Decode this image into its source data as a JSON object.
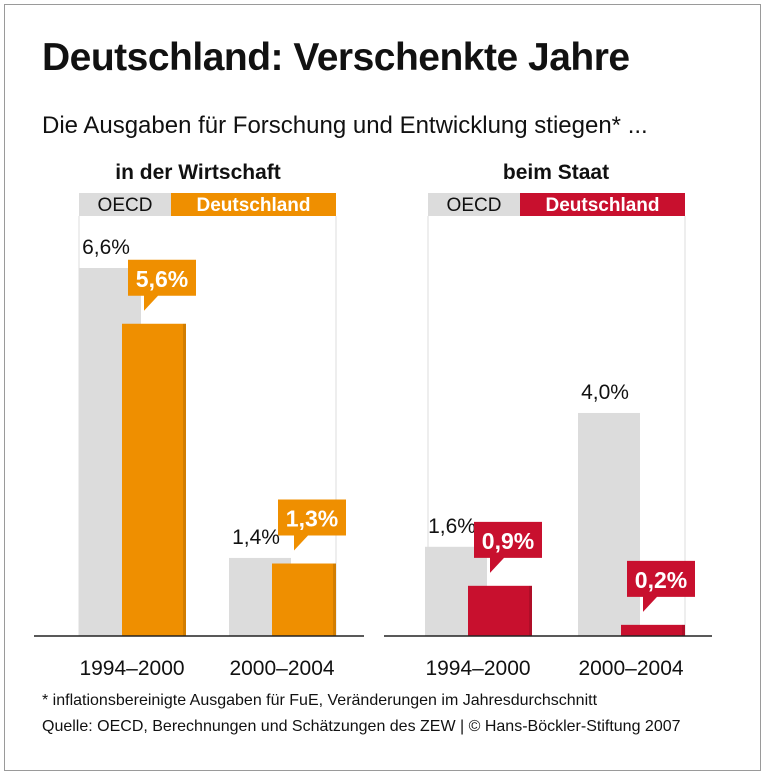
{
  "title": "Deutschland: Verschenkte Jahre",
  "subtitle": "Die Ausgaben für Forschung und Entwicklung stiegen* ...",
  "footnote": "* inflationsbereinigte Ausgaben für FuE, Veränderungen im Jahresdurchschnitt",
  "source": "Quelle: OECD, Berechnungen und Schätzungen des ZEW | © Hans-Böckler-Stiftung 2007",
  "colors": {
    "oecd": "#dcdcdc",
    "wirtschaft_de": "#ef8f00",
    "staat_de": "#c8102e",
    "axis": "#222222"
  },
  "chart_data": [
    {
      "type": "bar",
      "title": "in der Wirtschaft",
      "categories": [
        "1994–2000",
        "2000–2004"
      ],
      "series": [
        {
          "name": "OECD",
          "values": [
            6.6,
            1.4
          ],
          "labels": [
            "6,6%",
            "1,4%"
          ]
        },
        {
          "name": "Deutschland",
          "values": [
            5.6,
            1.3
          ],
          "labels": [
            "5,6%",
            "1,3%"
          ]
        }
      ],
      "ylim": [
        0,
        7.5
      ],
      "legend": "top",
      "grid": false
    },
    {
      "type": "bar",
      "title": "beim Staat",
      "categories": [
        "1994–2000",
        "2000–2004"
      ],
      "series": [
        {
          "name": "OECD",
          "values": [
            1.6,
            4.0
          ],
          "labels": [
            "1,6%",
            "4,0%"
          ]
        },
        {
          "name": "Deutschland",
          "values": [
            0.9,
            0.2
          ],
          "labels": [
            "0,9%",
            "0,2%"
          ]
        }
      ],
      "ylim": [
        0,
        7.5
      ],
      "legend": "top",
      "grid": false
    }
  ]
}
